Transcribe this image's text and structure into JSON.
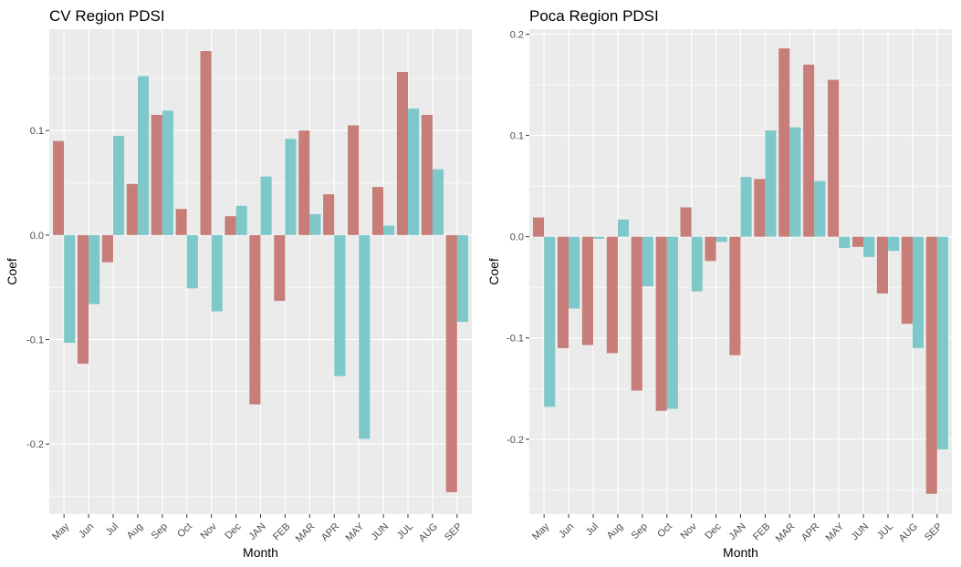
{
  "colors": {
    "panel_bg": "#ebebeb",
    "grid_major": "#ffffff",
    "red_series": "#c77d78",
    "teal_series": "#7ec8c9",
    "tick_text": "#4d4d4d"
  },
  "chart_data": [
    {
      "type": "bar",
      "title": "CV Region PDSI",
      "xlabel": "Month",
      "ylabel": "Coef",
      "categories": [
        "May",
        "Jun",
        "Jul",
        "Aug",
        "Sep",
        "Oct",
        "Nov",
        "Dec",
        "JAN",
        "FEB",
        "MAR",
        "APR",
        "MAY",
        "JUN",
        "JUL",
        "AUG",
        "SEP"
      ],
      "series": [
        {
          "color": "red_series",
          "values": [
            0.09,
            -0.123,
            -0.026,
            0.049,
            0.115,
            0.025,
            0.176,
            0.018,
            -0.162,
            -0.063,
            0.1,
            0.039,
            0.105,
            0.046,
            0.156,
            0.115,
            -0.246
          ]
        },
        {
          "color": "teal_series",
          "values": [
            -0.103,
            -0.066,
            0.095,
            0.152,
            0.119,
            -0.051,
            -0.073,
            0.028,
            0.056,
            0.092,
            0.02,
            -0.135,
            -0.195,
            0.009,
            0.121,
            0.063,
            -0.083
          ]
        }
      ],
      "ylim": [
        -0.267,
        0.197
      ],
      "yticks": [
        0.1,
        0.0,
        -0.1,
        -0.2
      ],
      "ytick_labels": [
        "0.1",
        "0.0",
        "-0.1",
        "-0.2"
      ],
      "grid": true,
      "legend": "none"
    },
    {
      "type": "bar",
      "title": "Poca Region PDSI",
      "xlabel": "Month",
      "ylabel": "Coef",
      "categories": [
        "May",
        "Jun",
        "Jul",
        "Aug",
        "Sep",
        "Oct",
        "Nov",
        "Dec",
        "JAN",
        "FEB",
        "MAR",
        "APR",
        "MAY",
        "JUN",
        "JUL",
        "AUG",
        "SEP"
      ],
      "series": [
        {
          "color": "red_series",
          "values": [
            0.019,
            -0.11,
            -0.107,
            -0.115,
            -0.152,
            -0.172,
            0.029,
            -0.024,
            -0.117,
            0.057,
            0.186,
            0.17,
            0.155,
            -0.01,
            -0.056,
            -0.086,
            -0.254
          ]
        },
        {
          "color": "teal_series",
          "values": [
            -0.168,
            -0.071,
            -0.002,
            0.017,
            -0.049,
            -0.17,
            -0.054,
            -0.005,
            0.059,
            0.105,
            0.108,
            0.055,
            -0.011,
            -0.02,
            -0.014,
            -0.11,
            -0.21
          ]
        }
      ],
      "ylim": [
        -0.274,
        0.205
      ],
      "yticks": [
        0.2,
        0.1,
        0.0,
        -0.1,
        -0.2
      ],
      "ytick_labels": [
        "0.2",
        "0.1",
        "0.0",
        "-0.1",
        "-0.2"
      ],
      "grid": true,
      "legend": "none"
    }
  ]
}
